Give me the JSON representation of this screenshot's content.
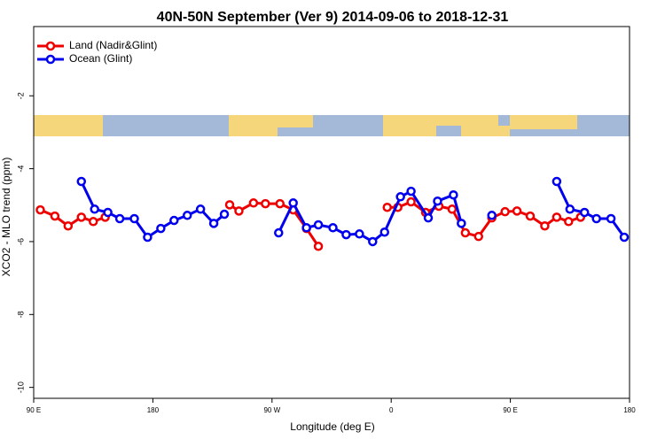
{
  "chart_data": {
    "type": "line",
    "title": "40N-50N September (Ver 9)   2014-09-06 to 2018-12-31",
    "x_label": "Longitude (deg E)",
    "y_label": "XCO2 - MLO trend (ppm)",
    "xlim": [
      90,
      540
    ],
    "xticks": [
      {
        "value": 90,
        "label": "90 E"
      },
      {
        "value": 180,
        "label": "180"
      },
      {
        "value": 270,
        "label": "90 W"
      },
      {
        "value": 360,
        "label": "0"
      },
      {
        "value": 450,
        "label": "90 E"
      },
      {
        "value": 540,
        "label": "180"
      }
    ],
    "ylim": [
      -10.3,
      -0.1
    ],
    "yticks": [
      -2,
      -4,
      -6,
      -8,
      -10
    ],
    "legend": "top-left",
    "series": [
      {
        "name": "Land (Nadir&Glint)",
        "color": "#ee0000",
        "x": [
          95,
          106,
          116,
          126,
          135,
          144,
          150,
          238,
          245,
          256,
          265,
          276,
          286,
          296,
          305,
          330,
          357,
          365,
          375,
          386,
          396,
          406,
          416,
          426,
          436,
          446,
          455,
          465,
          476,
          485,
          494,
          503
        ],
        "values": [
          -5.13,
          -5.3,
          -5.57,
          -5.33,
          -5.45,
          -5.33,
          null,
          -4.99,
          -5.16,
          -4.94,
          -4.96,
          -4.96,
          -5.13,
          -5.64,
          -6.13,
          null,
          -5.06,
          -5.06,
          -4.91,
          -5.2,
          -5.03,
          -5.11,
          -5.76,
          -5.86,
          -5.35,
          -5.18,
          -5.16,
          -5.3,
          -5.57,
          -5.33,
          -5.45,
          -5.33
        ]
      },
      {
        "name": "Ocean (Glint)",
        "color": "#0000ee",
        "x": [
          126,
          136,
          146,
          155,
          166,
          176,
          186,
          196,
          206,
          216,
          226,
          234,
          270,
          275,
          286,
          296,
          305,
          316,
          326,
          336,
          346,
          355,
          367,
          375,
          388,
          395,
          407,
          413,
          430,
          436,
          470,
          485,
          495,
          506,
          515,
          526,
          536
        ],
        "values": [
          -4.35,
          -5.11,
          -5.2,
          -5.37,
          -5.37,
          -5.88,
          -5.64,
          -5.42,
          -5.28,
          -5.11,
          -5.5,
          -5.25,
          null,
          -5.76,
          -4.94,
          -5.62,
          -5.54,
          -5.62,
          -5.81,
          -5.79,
          -6.0,
          -5.74,
          -4.77,
          -4.62,
          -5.35,
          -4.89,
          -4.72,
          -5.5,
          null,
          -5.28,
          null,
          -4.35,
          -5.11,
          -5.2,
          -5.37,
          -5.37,
          -5.88
        ]
      }
    ]
  }
}
